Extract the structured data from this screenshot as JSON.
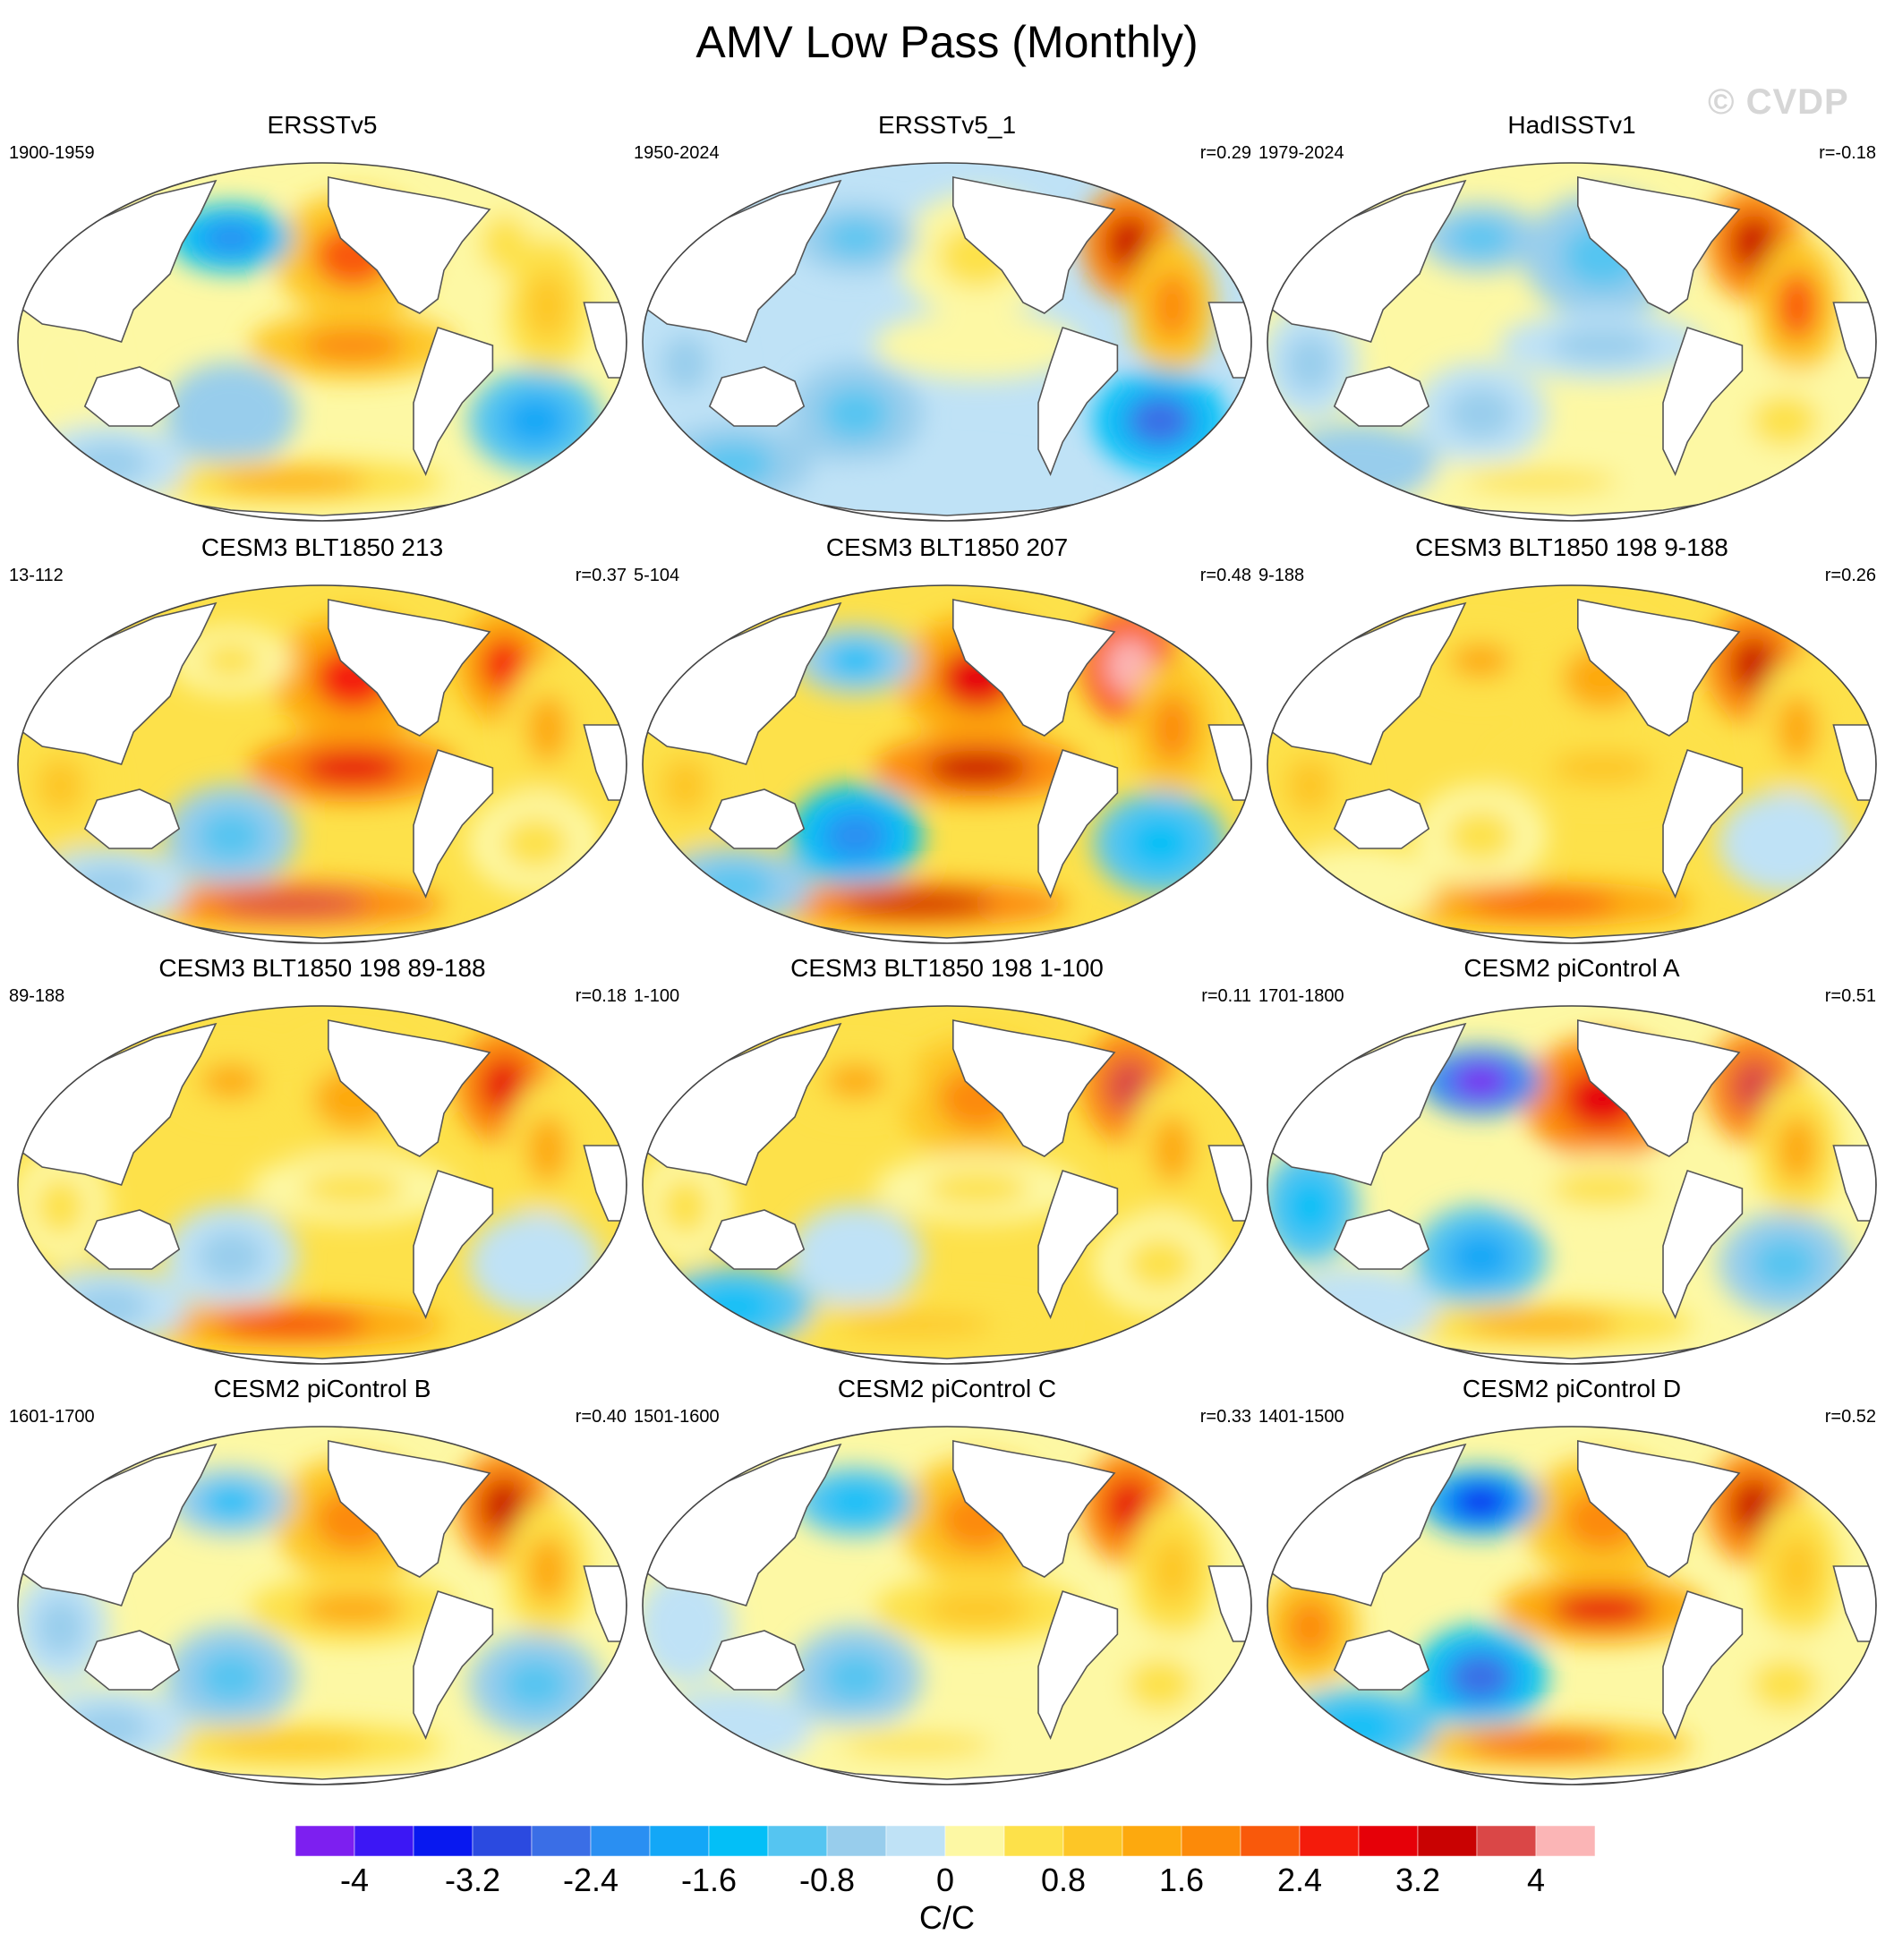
{
  "chart_data": {
    "type": "heatmap",
    "title": "AMV Low Pass (Monthly)",
    "watermark": "© CVDP",
    "colorbar": {
      "units": "C/C",
      "levels": [
        -4.4,
        -4.0,
        -3.6,
        -3.2,
        -2.8,
        -2.4,
        -2.0,
        -1.6,
        -1.2,
        -0.8,
        -0.4,
        0,
        0.4,
        0.8,
        1.2,
        1.6,
        2.0,
        2.4,
        2.8,
        3.2,
        3.6,
        4.0,
        4.4
      ],
      "tick_labels": [
        "-4",
        "-3.2",
        "-2.4",
        "-1.6",
        "-0.8",
        "0",
        "0.8",
        "1.6",
        "2.4",
        "3.2",
        "4"
      ],
      "tick_values": [
        -4,
        -3.2,
        -2.4,
        -1.6,
        -0.8,
        0,
        0.8,
        1.6,
        2.4,
        3.2,
        4
      ],
      "colors": [
        "#7d1ff0",
        "#3c17f5",
        "#0818f0",
        "#2b4ae0",
        "#3a6ee6",
        "#2a8ff2",
        "#13a7f7",
        "#03bff7",
        "#55c5f1",
        "#98cdec",
        "#bfe2f6",
        "#fdf8a4",
        "#fde14a",
        "#fdc626",
        "#fda90e",
        "#fc8a09",
        "#f9590b",
        "#f41b0b",
        "#e60008",
        "#c90202",
        "#da4747",
        "#fbb5b6"
      ]
    },
    "panels": [
      {
        "title": "ERSSTv5",
        "period": "1900-1959",
        "r": "",
        "pattern": [
          0.3,
          2.0,
          0.6,
          -2.4,
          1.6,
          0.8,
          -0.8,
          -1.8,
          1.2,
          -0.6
        ]
      },
      {
        "title": "ERSSTv5_1",
        "period": "1950-2024",
        "r": "r=0.29",
        "pattern": [
          -0.5,
          0.4,
          3.4,
          -1.0,
          0.2,
          1.8,
          -1.0,
          -2.6,
          -0.4,
          -0.9
        ]
      },
      {
        "title": "HadISSTv1",
        "period": "1979-2024",
        "r": "r=-0.18",
        "pattern": [
          -0.6,
          -1.2,
          3.2,
          -1.2,
          -0.6,
          2.0,
          -0.6,
          0.5,
          0.4,
          -0.8
        ]
      },
      {
        "title": "CESM3 BLT1850 213",
        "period": "13-112",
        "r": "r=0.37",
        "pattern": [
          1.0,
          2.4,
          2.6,
          0.6,
          3.0,
          1.4,
          -1.0,
          0.6,
          3.6,
          -0.5
        ]
      },
      {
        "title": "CESM3 BLT1850 207",
        "period": "5-104",
        "r": "r=0.48",
        "pattern": [
          0.8,
          2.8,
          4.0,
          -1.4,
          3.2,
          1.6,
          -2.4,
          -1.6,
          3.4,
          -1.2
        ]
      },
      {
        "title": "CESM3 BLT1850 198 9-188",
        "period": "9-188",
        "r": "r=0.26",
        "pattern": [
          0.8,
          1.4,
          3.4,
          1.2,
          1.0,
          1.4,
          0.4,
          -0.4,
          2.2,
          0.3
        ]
      },
      {
        "title": "CESM3 BLT1850 198 89-188",
        "period": "89-188",
        "r": "r=0.18",
        "pattern": [
          0.4,
          1.2,
          3.0,
          1.4,
          0.6,
          1.2,
          -0.6,
          -0.4,
          2.4,
          -0.6
        ]
      },
      {
        "title": "CESM3 BLT1850 198 1-100",
        "period": "1-100",
        "r": "r=0.11",
        "pattern": [
          0.4,
          1.8,
          3.6,
          1.2,
          0.6,
          1.2,
          -0.4,
          0.4,
          1.0,
          -1.6
        ]
      },
      {
        "title": "CESM2 piControl A",
        "period": "1701-1800",
        "r": "r=0.51",
        "pattern": [
          -1.6,
          3.0,
          3.6,
          -4.2,
          0.6,
          1.4,
          -1.8,
          -1.2,
          1.4,
          -0.4
        ]
      },
      {
        "title": "CESM2 piControl B",
        "period": "1601-1700",
        "r": "r=0.40",
        "pattern": [
          -0.6,
          1.8,
          3.2,
          -1.4,
          1.2,
          1.2,
          -1.2,
          -1.0,
          0.8,
          -0.6
        ]
      },
      {
        "title": "CESM2 piControl C",
        "period": "1501-1600",
        "r": "r=0.33",
        "pattern": [
          -0.4,
          1.6,
          3.0,
          -1.6,
          0.8,
          1.0,
          -1.2,
          0.4,
          0.6,
          -0.4
        ]
      },
      {
        "title": "CESM2 piControl D",
        "period": "1401-1500",
        "r": "r=0.52",
        "pattern": [
          1.6,
          1.6,
          3.2,
          -3.4,
          2.8,
          0.8,
          -2.8,
          0.6,
          2.0,
          -1.6
        ]
      }
    ]
  }
}
